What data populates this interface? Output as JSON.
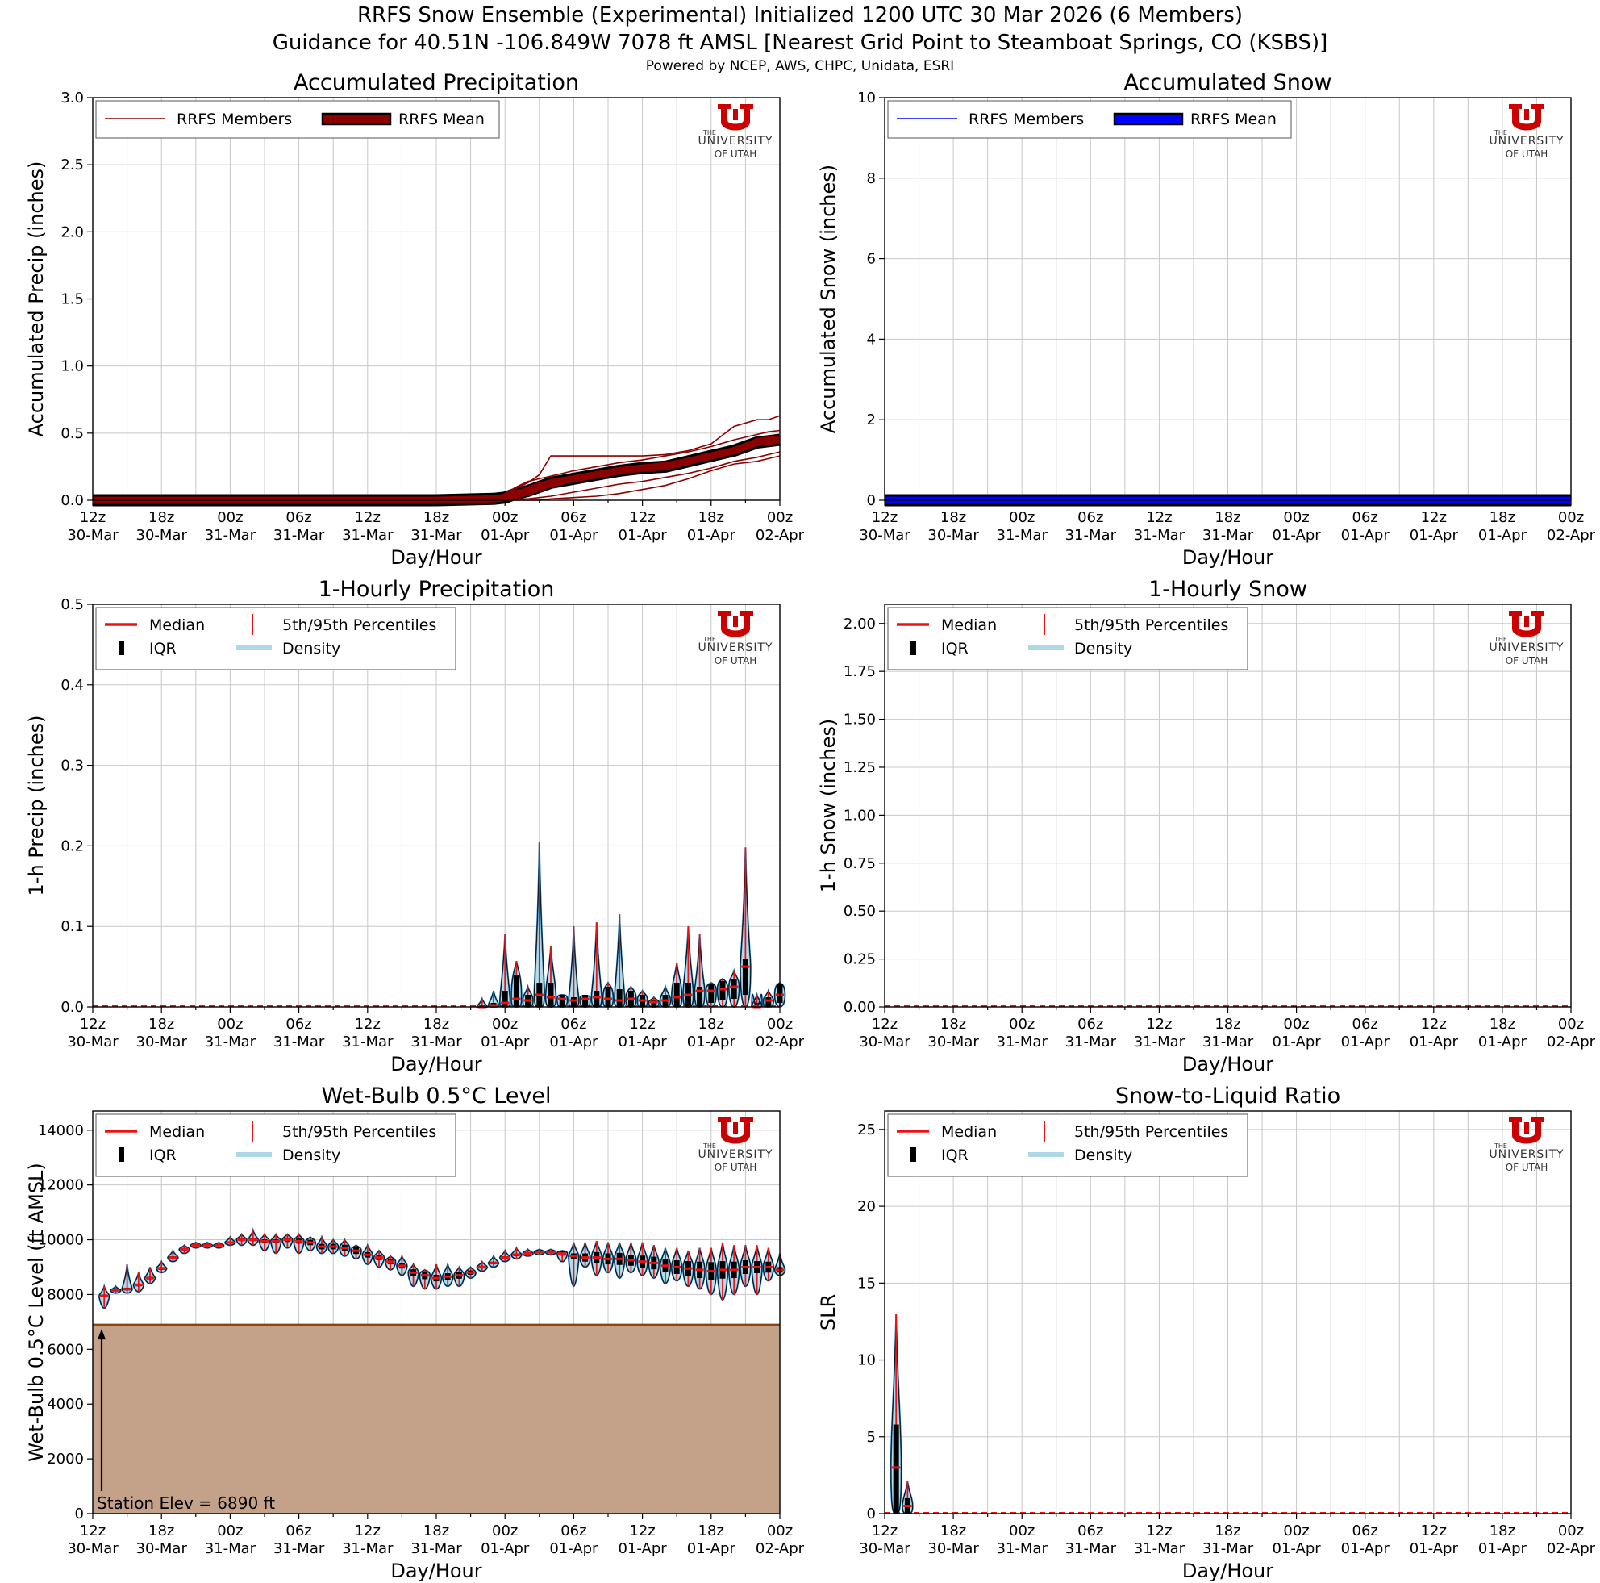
{
  "header": {
    "title_line1": "RRFS Snow Ensemble (Experimental) Initialized 1200 UTC 30 Mar 2026 (6 Members)",
    "title_line2": "Guidance for 40.51N -106.849W 7078 ft AMSL [Nearest Grid Point to Steamboat Springs, CO (KSBS)]",
    "credits": "Powered by NCEP, AWS, CHPC, Unidata, ESRI"
  },
  "logo": {
    "the": "THE",
    "university": "UNIVERSITY",
    "of_utah": "OF UTAH",
    "color": "#cc0000"
  },
  "shared": {
    "x_hours": [
      0,
      6,
      12,
      18,
      24,
      30,
      36,
      42,
      48,
      54,
      60
    ],
    "x_tick_labels": [
      [
        "12z",
        "30-Mar"
      ],
      [
        "18z",
        "30-Mar"
      ],
      [
        "00z",
        "31-Mar"
      ],
      [
        "06z",
        "31-Mar"
      ],
      [
        "12z",
        "31-Mar"
      ],
      [
        "18z",
        "31-Mar"
      ],
      [
        "00z",
        "01-Apr"
      ],
      [
        "06z",
        "01-Apr"
      ],
      [
        "12z",
        "01-Apr"
      ],
      [
        "18z",
        "01-Apr"
      ],
      [
        "00z",
        "02-Apr"
      ]
    ],
    "xlabel": "Day/Hour",
    "violin_legend": [
      "Median",
      "IQR",
      "5th/95th Percentiles",
      "Density"
    ],
    "colors": {
      "median": "#ee1111",
      "iqr": "#000000",
      "density_fill": "#add8e6",
      "density_edge": "#1f77b4",
      "precip": "#8b0000",
      "snow": "#0000ff",
      "terrain": "#c4a189",
      "terrain_line": "#8b4513"
    }
  },
  "chart_data": [
    {
      "id": "accum_precip",
      "type": "line",
      "title": "Accumulated Precipitation",
      "ylabel": "Accumulated Precip (inches)",
      "xlabel": "Day/Hour",
      "ylim": [
        0,
        3.0
      ],
      "yticks": [
        0.0,
        0.5,
        1.0,
        1.5,
        2.0,
        2.5,
        3.0
      ],
      "ytick_labels": [
        "0.0",
        "0.5",
        "1.0",
        "1.5",
        "2.0",
        "2.5",
        "3.0"
      ],
      "legend": [
        "RRFS Members",
        "RRFS Mean"
      ],
      "x": [
        0,
        30,
        35,
        36,
        37,
        38,
        39,
        40,
        42,
        44,
        46,
        48,
        50,
        52,
        54,
        56,
        58,
        59,
        60
      ],
      "series": [
        {
          "name": "RRFS Members",
          "values": [
            0,
            0,
            0.01,
            0.04,
            0.09,
            0.13,
            0.19,
            0.33,
            0.33,
            0.33,
            0.33,
            0.33,
            0.34,
            0.37,
            0.42,
            0.55,
            0.6,
            0.6,
            0.63
          ]
        },
        {
          "name": "RRFS Members",
          "values": [
            0,
            0,
            0.02,
            0.05,
            0.1,
            0.14,
            0.16,
            0.18,
            0.22,
            0.25,
            0.28,
            0.3,
            0.33,
            0.36,
            0.4,
            0.45,
            0.49,
            0.51,
            0.52
          ]
        },
        {
          "name": "RRFS Members",
          "values": [
            0,
            0,
            0.01,
            0.03,
            0.06,
            0.1,
            0.13,
            0.15,
            0.18,
            0.21,
            0.24,
            0.26,
            0.28,
            0.31,
            0.34,
            0.38,
            0.46,
            0.47,
            0.48
          ]
        },
        {
          "name": "RRFS Members",
          "values": [
            0,
            0,
            0,
            0.01,
            0.02,
            0.04,
            0.07,
            0.1,
            0.14,
            0.18,
            0.22,
            0.25,
            0.27,
            0.3,
            0.33,
            0.37,
            0.43,
            0.44,
            0.45
          ]
        },
        {
          "name": "RRFS Members",
          "values": [
            0,
            0,
            0,
            0,
            0.01,
            0.01,
            0.02,
            0.03,
            0.06,
            0.09,
            0.12,
            0.14,
            0.17,
            0.2,
            0.24,
            0.29,
            0.32,
            0.34,
            0.36
          ]
        },
        {
          "name": "RRFS Members",
          "values": [
            0,
            0,
            0,
            0,
            0,
            0,
            0,
            0.01,
            0.02,
            0.03,
            0.05,
            0.08,
            0.11,
            0.16,
            0.22,
            0.27,
            0.29,
            0.31,
            0.33
          ]
        },
        {
          "name": "RRFS Mean",
          "values": [
            0,
            0,
            0.01,
            0.02,
            0.05,
            0.07,
            0.1,
            0.13,
            0.16,
            0.19,
            0.22,
            0.24,
            0.25,
            0.29,
            0.33,
            0.37,
            0.43,
            0.44,
            0.45
          ]
        }
      ]
    },
    {
      "id": "accum_snow",
      "type": "line",
      "title": "Accumulated Snow",
      "ylabel": "Accumulated Snow (inches)",
      "xlabel": "Day/Hour",
      "ylim": [
        0,
        10
      ],
      "yticks": [
        0,
        2,
        4,
        6,
        8,
        10
      ],
      "ytick_labels": [
        "0",
        "2",
        "4",
        "6",
        "8",
        "10"
      ],
      "legend": [
        "RRFS Members",
        "RRFS Mean"
      ],
      "x": [
        0,
        60
      ],
      "series": [
        {
          "name": "RRFS Members",
          "values": [
            0,
            0
          ]
        },
        {
          "name": "RRFS Mean",
          "values": [
            0,
            0
          ]
        }
      ]
    },
    {
      "id": "hourly_precip",
      "type": "violin",
      "title": "1-Hourly Precipitation",
      "ylabel": "1-h Precip (inches)",
      "xlabel": "Day/Hour",
      "ylim": [
        0,
        0.5
      ],
      "yticks": [
        0.0,
        0.1,
        0.2,
        0.3,
        0.4,
        0.5
      ],
      "ytick_labels": [
        "0.0",
        "0.1",
        "0.2",
        "0.3",
        "0.4",
        "0.5"
      ],
      "legend": [
        "Median",
        "IQR",
        "5th/95th Percentiles",
        "Density"
      ],
      "hours": [
        34,
        35,
        36,
        37,
        38,
        39,
        40,
        41,
        42,
        43,
        44,
        45,
        46,
        47,
        48,
        49,
        50,
        51,
        52,
        53,
        54,
        55,
        56,
        57,
        58,
        59,
        60
      ],
      "p5": [
        0,
        0,
        0,
        0,
        0,
        0,
        0,
        0,
        0,
        0,
        0,
        0,
        0,
        0,
        0,
        0,
        0,
        0,
        0,
        0,
        0,
        0,
        0,
        0,
        0,
        0,
        0
      ],
      "q1": [
        0,
        0,
        0,
        0,
        0,
        0,
        0,
        0,
        0,
        0,
        0,
        0,
        0,
        0,
        0,
        0,
        0,
        0,
        0,
        0,
        0.005,
        0.008,
        0.01,
        0.015,
        0.035,
        0.0,
        0.005
      ],
      "median": [
        0,
        0.002,
        0.005,
        0.01,
        0.008,
        0.015,
        0.012,
        0.01,
        0.008,
        0.01,
        0.012,
        0.01,
        0.008,
        0.01,
        0.008,
        0.006,
        0.008,
        0.012,
        0.015,
        0.02,
        0.02,
        0.022,
        0.025,
        0.05,
        0.0,
        0.008,
        0.015
      ],
      "q3": [
        0.002,
        0.005,
        0.02,
        0.04,
        0.015,
        0.03,
        0.03,
        0.015,
        0.012,
        0.015,
        0.02,
        0.025,
        0.022,
        0.02,
        0.015,
        0.008,
        0.015,
        0.03,
        0.03,
        0.025,
        0.028,
        0.032,
        0.035,
        0.06,
        0.005,
        0.012,
        0.028
      ],
      "p95": [
        0.01,
        0.02,
        0.09,
        0.057,
        0.025,
        0.205,
        0.075,
        0.015,
        0.1,
        0.012,
        0.105,
        0.03,
        0.115,
        0.025,
        0.02,
        0.012,
        0.025,
        0.055,
        0.1,
        0.09,
        0.03,
        0.035,
        0.045,
        0.198,
        0.015,
        0.02,
        0.03
      ]
    },
    {
      "id": "hourly_snow",
      "type": "violin",
      "title": "1-Hourly Snow",
      "ylabel": "1-h Snow (inches)",
      "xlabel": "Day/Hour",
      "ylim": [
        0,
        2.1
      ],
      "yticks": [
        0.0,
        0.25,
        0.5,
        0.75,
        1.0,
        1.25,
        1.5,
        1.75,
        2.0
      ],
      "ytick_labels": [
        "0.00",
        "0.25",
        "0.50",
        "0.75",
        "1.00",
        "1.25",
        "1.50",
        "1.75",
        "2.00"
      ],
      "legend": [
        "Median",
        "IQR",
        "5th/95th Percentiles",
        "Density"
      ],
      "hours": [],
      "p5": [],
      "q1": [],
      "median": [],
      "q3": [],
      "p95": []
    },
    {
      "id": "wetbulb",
      "type": "violin",
      "title": "Wet-Bulb 0.5°C Level",
      "ylabel": "Wet-Bulb 0.5°C Level (ft AMSL)",
      "xlabel": "Day/Hour",
      "ylim": [
        0,
        14700
      ],
      "yticks": [
        0,
        2000,
        4000,
        6000,
        8000,
        10000,
        12000,
        14000
      ],
      "ytick_labels": [
        "0",
        "2000",
        "4000",
        "6000",
        "8000",
        "10000",
        "12000",
        "14000"
      ],
      "legend": [
        "Median",
        "IQR",
        "5th/95th Percentiles",
        "Density"
      ],
      "station_elev_ft": 6890,
      "annotation": "Station Elev = 6890 ft",
      "hours": [
        1,
        2,
        3,
        4,
        5,
        6,
        7,
        8,
        9,
        10,
        11,
        12,
        13,
        14,
        15,
        16,
        17,
        18,
        19,
        20,
        21,
        22,
        23,
        24,
        25,
        26,
        27,
        28,
        29,
        30,
        31,
        32,
        33,
        34,
        35,
        36,
        37,
        38,
        39,
        40,
        41,
        42,
        43,
        44,
        45,
        46,
        47,
        48,
        49,
        50,
        51,
        52,
        53,
        54,
        55,
        56,
        57,
        58,
        59,
        60
      ],
      "median": [
        7950,
        8150,
        8200,
        8350,
        8600,
        8950,
        9350,
        9650,
        9800,
        9800,
        9800,
        9900,
        10000,
        10000,
        9950,
        9950,
        10000,
        9950,
        9900,
        9750,
        9750,
        9700,
        9600,
        9450,
        9350,
        9200,
        9050,
        8800,
        8700,
        8600,
        8650,
        8700,
        8800,
        9000,
        9150,
        9350,
        9450,
        9500,
        9550,
        9550,
        9500,
        9400,
        9350,
        9350,
        9300,
        9300,
        9250,
        9200,
        9150,
        9050,
        9000,
        8950,
        8900,
        8850,
        8900,
        8900,
        9000,
        9000,
        9000,
        8900
      ],
      "q1": [
        7900,
        8120,
        8150,
        8300,
        8550,
        8900,
        9300,
        9600,
        9760,
        9770,
        9770,
        9860,
        9950,
        9950,
        9880,
        9880,
        9920,
        9860,
        9800,
        9650,
        9650,
        9580,
        9480,
        9350,
        9250,
        9100,
        8950,
        8680,
        8560,
        8480,
        8520,
        8580,
        8720,
        8950,
        9100,
        9300,
        9400,
        9450,
        9500,
        9500,
        9420,
        9300,
        9200,
        9150,
        9100,
        9080,
        9050,
        8980,
        8920,
        8820,
        8750,
        8680,
        8600,
        8520,
        8580,
        8600,
        8750,
        8780,
        8800,
        8800
      ],
      "q3": [
        8000,
        8180,
        8250,
        8400,
        8650,
        9000,
        9400,
        9700,
        9840,
        9830,
        9830,
        9940,
        10050,
        10050,
        10020,
        10020,
        10080,
        10040,
        10000,
        9850,
        9850,
        9820,
        9720,
        9550,
        9450,
        9300,
        9150,
        8920,
        8840,
        8720,
        8780,
        8820,
        8880,
        9050,
        9200,
        9400,
        9500,
        9550,
        9600,
        9600,
        9580,
        9500,
        9500,
        9550,
        9500,
        9520,
        9450,
        9420,
        9380,
        9280,
        9250,
        9220,
        9200,
        9180,
        9220,
        9200,
        9250,
        9220,
        9200,
        9000
      ],
      "p5": [
        7500,
        8050,
        8050,
        8100,
        8400,
        8800,
        9200,
        9500,
        9700,
        9700,
        9700,
        9800,
        9800,
        9800,
        9600,
        9500,
        9700,
        9500,
        9600,
        9500,
        9500,
        9400,
        9300,
        9100,
        9000,
        8900,
        8700,
        8300,
        8200,
        8200,
        8300,
        8300,
        8600,
        8850,
        9000,
        9200,
        9300,
        9400,
        9450,
        9450,
        9200,
        8300,
        9000,
        8700,
        8800,
        8600,
        8800,
        8700,
        8600,
        8400,
        8500,
        8300,
        8200,
        8000,
        7800,
        8000,
        8300,
        8000,
        8500,
        8700
      ],
      "p95": [
        8300,
        8300,
        9100,
        8800,
        9000,
        9200,
        9600,
        9800,
        9900,
        9900,
        9900,
        10100,
        10200,
        10350,
        10200,
        10200,
        10200,
        10200,
        10100,
        10100,
        10000,
        10000,
        9800,
        9800,
        9600,
        9400,
        9400,
        9100,
        8900,
        9100,
        9100,
        9000,
        9000,
        9200,
        9400,
        9600,
        9700,
        9650,
        9650,
        9650,
        9600,
        9900,
        9900,
        9950,
        9900,
        9900,
        9900,
        9900,
        9800,
        9700,
        9700,
        9600,
        9700,
        9700,
        9900,
        9800,
        9800,
        9800,
        9700,
        9500
      ]
    },
    {
      "id": "slr",
      "type": "violin",
      "title": "Snow-to-Liquid Ratio",
      "ylabel": "SLR",
      "xlabel": "Day/Hour",
      "ylim": [
        0,
        26.2
      ],
      "yticks": [
        0,
        5,
        10,
        15,
        20,
        25
      ],
      "ytick_labels": [
        "0",
        "5",
        "10",
        "15",
        "20",
        "25"
      ],
      "legend": [
        "Median",
        "IQR",
        "5th/95th Percentiles",
        "Density"
      ],
      "hours": [
        1,
        2
      ],
      "p5": [
        0,
        0
      ],
      "q1": [
        0,
        0
      ],
      "median": [
        3,
        0.5
      ],
      "q3": [
        5.8,
        1.0
      ],
      "p95": [
        13,
        2.1
      ]
    }
  ]
}
